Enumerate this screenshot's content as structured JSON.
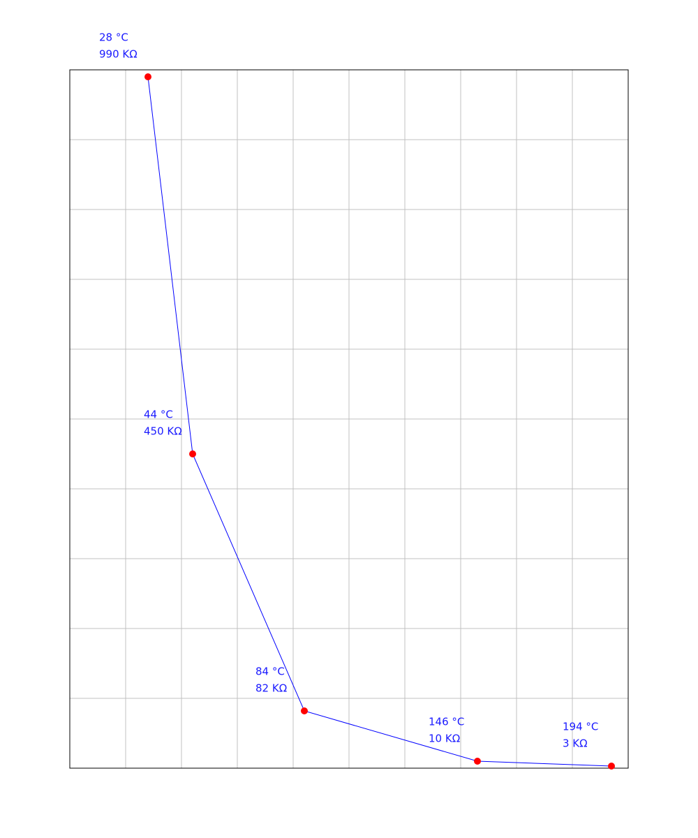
{
  "chart_data": {
    "type": "line",
    "x": [
      28,
      44,
      84,
      146,
      194
    ],
    "values": [
      990,
      450,
      82,
      10,
      3
    ],
    "x_labels": [
      "28 °C",
      "44 °C",
      "84 °C",
      "146 °C",
      "194 °C"
    ],
    "value_labels": [
      "990 KΩ",
      "450 KΩ",
      "82 KΩ",
      "10 KΩ",
      "3 KΩ"
    ],
    "color": "#0000ff",
    "marker_color": "#ff0000",
    "xlim": [
      0,
      200
    ],
    "ylim": [
      0,
      1000
    ],
    "xticks": [
      0,
      20,
      40,
      60,
      80,
      100,
      120,
      140,
      160,
      180,
      200
    ],
    "yticks": [
      0,
      100,
      200,
      300,
      400,
      500,
      600,
      700,
      800,
      900,
      1000
    ],
    "grid": true
  }
}
